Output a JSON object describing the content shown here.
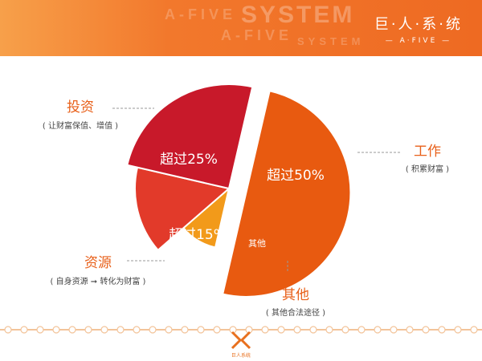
{
  "header": {
    "brand_name": "巨·人·系·统",
    "brand_sub": "— A·FIVE —",
    "watermark_1": "A-FIVE",
    "watermark_2": "SYSTEM",
    "watermark_3": "A-FIVE",
    "watermark_4": "SYSTEM"
  },
  "chart_data": {
    "type": "pie",
    "slices": [
      {
        "key": "work",
        "label": "超过50%",
        "value": 50,
        "color": "#e85a10",
        "exploded": true
      },
      {
        "key": "other",
        "label": "其他",
        "value": 10,
        "color": "#f29a1a",
        "exploded": false
      },
      {
        "key": "resource",
        "label": "超过15%",
        "value": 15,
        "color": "#e23a2a",
        "exploded": false
      },
      {
        "key": "invest",
        "label": "超过25%",
        "value": 25,
        "color": "#c8192a",
        "exploded": false
      }
    ]
  },
  "annotations": {
    "work": {
      "title": "工作",
      "sub": "( 积累财富 )"
    },
    "invest": {
      "title": "投资",
      "sub": "( 让财富保值、增值 )"
    },
    "resource": {
      "title": "资源",
      "sub": "( 自身资源 ➞ 转化为财富 )"
    },
    "other": {
      "title": "其他",
      "sub": "( 其他合法途径 )"
    }
  },
  "footer": {
    "text": "巨人系统",
    "accent": "#e8701e"
  }
}
